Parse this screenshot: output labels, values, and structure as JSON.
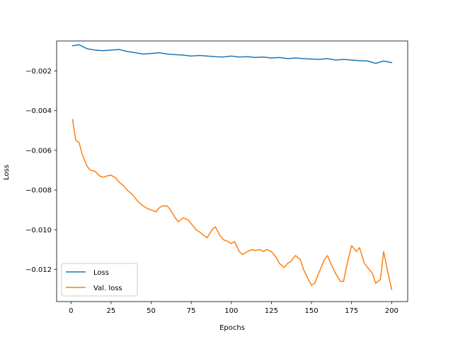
{
  "chart_data": {
    "type": "line",
    "title": "",
    "xlabel": "Epochs",
    "ylabel": "Loss",
    "xlim": [
      -8.95,
      210
    ],
    "ylim": [
      -0.01362,
      -0.00049
    ],
    "xticks": [
      0,
      25,
      50,
      75,
      100,
      125,
      150,
      175,
      200
    ],
    "xtick_labels": [
      "0",
      "25",
      "50",
      "75",
      "100",
      "125",
      "150",
      "175",
      "200"
    ],
    "yticks": [
      -0.002,
      -0.004,
      -0.006,
      -0.008,
      -0.01,
      -0.012
    ],
    "ytick_labels": [
      "−0.002",
      "−0.004",
      "−0.006",
      "−0.008",
      "−0.010",
      "−0.012"
    ],
    "grid": false,
    "legend_position": "lower-left",
    "series": [
      {
        "name": "Loss",
        "color": "#1f77b4",
        "x": [
          1,
          5,
          10,
          15,
          20,
          25,
          30,
          35,
          40,
          45,
          50,
          55,
          60,
          65,
          70,
          75,
          80,
          85,
          90,
          95,
          100,
          105,
          110,
          115,
          120,
          125,
          130,
          135,
          140,
          145,
          150,
          155,
          160,
          165,
          170,
          175,
          180,
          185,
          190,
          195,
          200
        ],
        "y": [
          -0.00073,
          -0.00068,
          -0.00088,
          -0.00095,
          -0.00098,
          -0.00095,
          -0.00092,
          -0.00102,
          -0.00108,
          -0.00115,
          -0.00112,
          -0.00108,
          -0.00115,
          -0.00118,
          -0.0012,
          -0.00125,
          -0.00122,
          -0.00125,
          -0.00128,
          -0.0013,
          -0.00125,
          -0.0013,
          -0.00128,
          -0.00132,
          -0.0013,
          -0.00135,
          -0.00132,
          -0.00138,
          -0.00135,
          -0.00138,
          -0.0014,
          -0.00142,
          -0.00138,
          -0.00145,
          -0.00142,
          -0.00145,
          -0.00148,
          -0.0015,
          -0.00162,
          -0.0015,
          -0.00158
        ]
      },
      {
        "name": "Val. loss",
        "color": "#ff7f0e",
        "x": [
          1,
          3,
          5,
          7,
          10,
          12,
          15,
          18,
          20,
          22,
          25,
          28,
          30,
          33,
          35,
          38,
          40,
          42,
          45,
          48,
          50,
          53,
          55,
          57,
          60,
          62,
          65,
          67,
          70,
          73,
          75,
          78,
          80,
          83,
          85,
          88,
          90,
          93,
          95,
          98,
          100,
          102,
          105,
          107,
          110,
          113,
          115,
          118,
          120,
          122,
          125,
          128,
          130,
          133,
          135,
          137,
          140,
          143,
          145,
          148,
          150,
          152,
          155,
          158,
          160,
          162,
          165,
          168,
          170,
          172,
          175,
          178,
          180,
          183,
          185,
          188,
          190,
          193,
          195,
          198,
          200
        ],
        "y": [
          -0.00445,
          -0.0055,
          -0.0056,
          -0.0062,
          -0.0068,
          -0.007,
          -0.00705,
          -0.0073,
          -0.00735,
          -0.0073,
          -0.00725,
          -0.0074,
          -0.0076,
          -0.0078,
          -0.008,
          -0.0082,
          -0.0084,
          -0.0086,
          -0.0088,
          -0.00895,
          -0.009,
          -0.0091,
          -0.0089,
          -0.0088,
          -0.0088,
          -0.009,
          -0.0094,
          -0.0096,
          -0.0094,
          -0.0095,
          -0.0097,
          -0.01,
          -0.0101,
          -0.0103,
          -0.0104,
          -0.01,
          -0.00985,
          -0.0103,
          -0.0105,
          -0.0106,
          -0.0107,
          -0.0106,
          -0.0111,
          -0.01125,
          -0.0111,
          -0.011,
          -0.01105,
          -0.011,
          -0.0111,
          -0.011,
          -0.0111,
          -0.0114,
          -0.0117,
          -0.0119,
          -0.0117,
          -0.0116,
          -0.0113,
          -0.0115,
          -0.012,
          -0.0125,
          -0.0128,
          -0.0127,
          -0.0121,
          -0.0115,
          -0.0113,
          -0.0117,
          -0.0122,
          -0.0126,
          -0.0126,
          -0.0118,
          -0.0108,
          -0.0111,
          -0.0109,
          -0.0117,
          -0.0119,
          -0.0122,
          -0.0127,
          -0.0125,
          -0.0111,
          -0.0123,
          -0.013
        ]
      }
    ]
  }
}
